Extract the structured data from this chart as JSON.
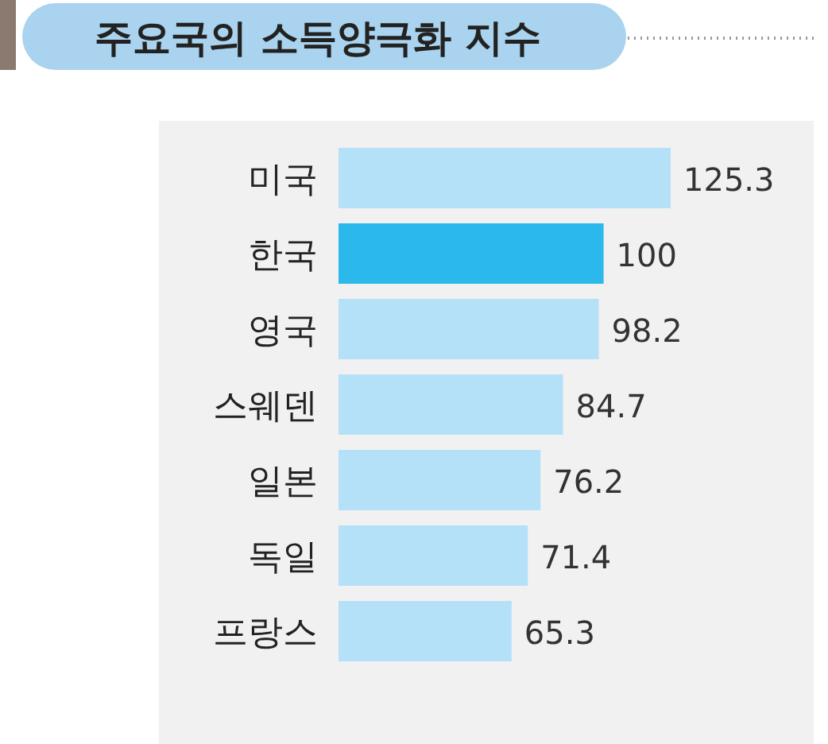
{
  "chart_data": {
    "type": "bar",
    "orientation": "horizontal",
    "title": "주요국의 소득양극화 지수",
    "categories": [
      "미국",
      "한국",
      "영국",
      "스웨덴",
      "일본",
      "독일",
      "프랑스"
    ],
    "values": [
      125.3,
      100,
      98.2,
      84.7,
      76.2,
      71.4,
      65.3
    ],
    "colors": [
      "#b5e1f8",
      "#2bb8ea",
      "#b5e1f8",
      "#b5e1f8",
      "#b5e1f8",
      "#b5e1f8",
      "#b5e1f8"
    ],
    "data_labels": true,
    "tick_labels": "y"
  }
}
